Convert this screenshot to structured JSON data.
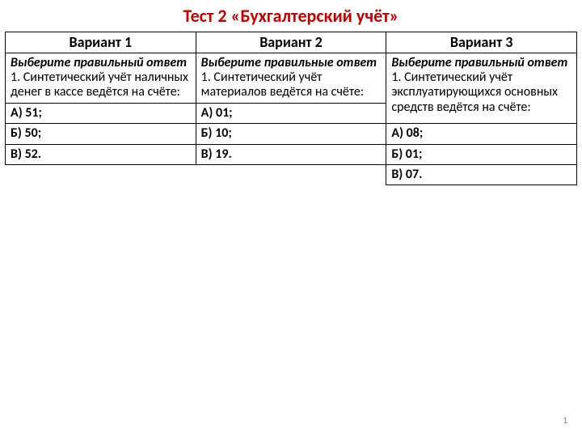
{
  "title": "Тест 2 «Бухгалтерский учёт»",
  "page_number": "1",
  "table": {
    "headers": [
      "Вариант 1",
      "Вариант 2",
      "Вариант 3"
    ],
    "col1": {
      "instruction": "Выберите правильный ответ",
      "question": "1. Синтетический учёт наличных денег в кассе ведётся на счёте:",
      "answers": [
        "А) 51;",
        "Б) 50;",
        "В) 52."
      ]
    },
    "col2": {
      "instruction": "Выберите правильные ответ",
      "question": "1. Синтетический учёт материалов ведётся на счёте:",
      "answers": [
        "А) 01;",
        "Б) 10;",
        "В) 19."
      ]
    },
    "col3": {
      "instruction": "Выберите правильный ответ",
      "question": "1. Синтетический учёт эксплуатирующихся основных средств ведётся на счёте:",
      "answers": [
        "А) 08;",
        "Б) 01;",
        "В) 07."
      ]
    }
  },
  "style": {
    "title_color": "#c00000",
    "border_color": "#000000",
    "background": "#ffffff",
    "page_number_color": "#808080",
    "title_fontsize": 22,
    "header_fontsize": 18,
    "cell_fontsize": 16
  }
}
